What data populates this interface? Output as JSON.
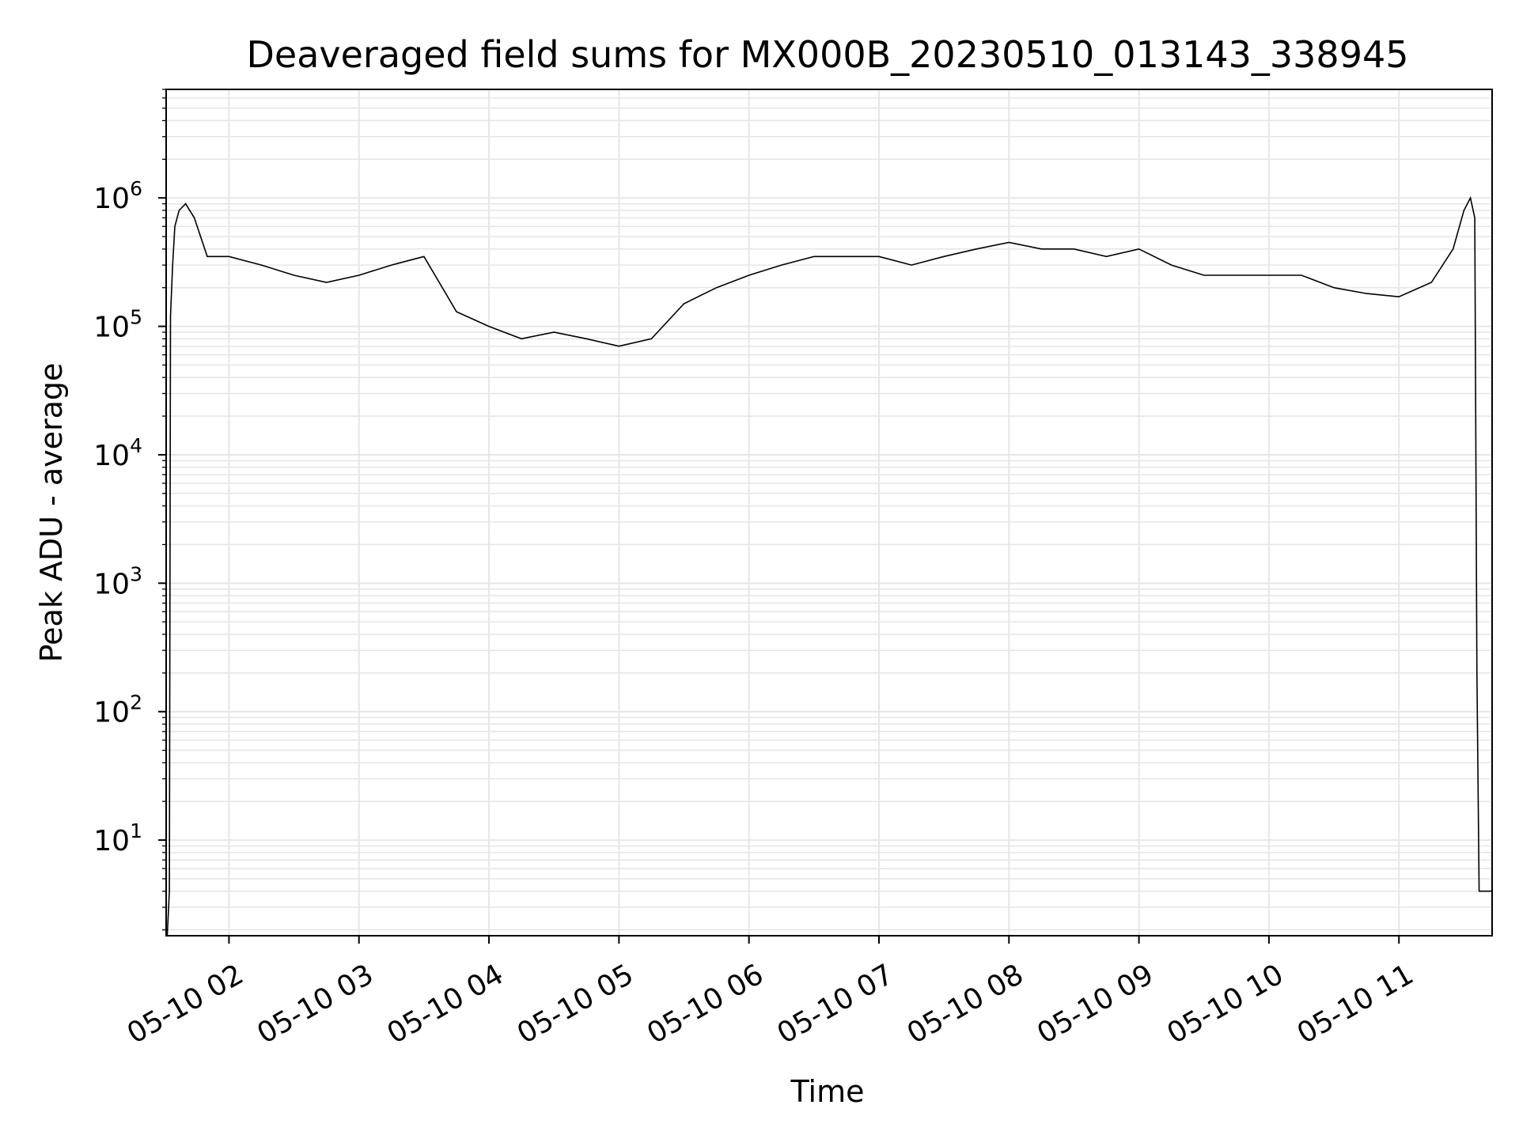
{
  "chart_data": {
    "type": "line",
    "title": "Deaveraged field sums for MX000B_20230510_013143_338945",
    "xlabel": "Time",
    "ylabel": "Peak ADU - average",
    "yscale": "log",
    "grid": true,
    "legend": "none",
    "line_color": "#000000",
    "grid_color": "#e6e6e6",
    "x_tick_labels": [
      "05-10 02",
      "05-10 03",
      "05-10 04",
      "05-10 05",
      "05-10 06",
      "05-10 07",
      "05-10 08",
      "05-10 09",
      "05-10 10",
      "05-10 11"
    ],
    "x_tick_times": [
      "2023-05-10T02:00",
      "2023-05-10T03:00",
      "2023-05-10T04:00",
      "2023-05-10T05:00",
      "2023-05-10T06:00",
      "2023-05-10T07:00",
      "2023-05-10T08:00",
      "2023-05-10T09:00",
      "2023-05-10T10:00",
      "2023-05-10T11:00"
    ],
    "xlim": [
      "2023-05-10T01:31",
      "2023-05-10T11:43"
    ],
    "y_tick_labels": [
      {
        "base": "10",
        "exp": "1",
        "value": 10
      },
      {
        "base": "10",
        "exp": "2",
        "value": 100
      },
      {
        "base": "10",
        "exp": "3",
        "value": 1000
      },
      {
        "base": "10",
        "exp": "4",
        "value": 10000
      },
      {
        "base": "10",
        "exp": "5",
        "value": 100000
      },
      {
        "base": "10",
        "exp": "6",
        "value": 1000000
      }
    ],
    "ylim": [
      1.8,
      7000000
    ],
    "series": [
      {
        "x": [
          "2023-05-10T01:31:30",
          "2023-05-10T01:32:30",
          "2023-05-10T01:33:00",
          "2023-05-10T01:34:00",
          "2023-05-10T01:35:00",
          "2023-05-10T01:37:00",
          "2023-05-10T01:40:00",
          "2023-05-10T01:44:00",
          "2023-05-10T01:50:00",
          "2023-05-10T02:00:00",
          "2023-05-10T02:15:00",
          "2023-05-10T02:30:00",
          "2023-05-10T02:45:00",
          "2023-05-10T03:00:00",
          "2023-05-10T03:15:00",
          "2023-05-10T03:30:00",
          "2023-05-10T03:45:00",
          "2023-05-10T04:00:00",
          "2023-05-10T04:15:00",
          "2023-05-10T04:30:00",
          "2023-05-10T04:45:00",
          "2023-05-10T05:00:00",
          "2023-05-10T05:15:00",
          "2023-05-10T05:30:00",
          "2023-05-10T05:45:00",
          "2023-05-10T06:00:00",
          "2023-05-10T06:15:00",
          "2023-05-10T06:30:00",
          "2023-05-10T06:45:00",
          "2023-05-10T07:00:00",
          "2023-05-10T07:15:00",
          "2023-05-10T07:30:00",
          "2023-05-10T07:45:00",
          "2023-05-10T08:00:00",
          "2023-05-10T08:15:00",
          "2023-05-10T08:30:00",
          "2023-05-10T08:45:00",
          "2023-05-10T09:00:00",
          "2023-05-10T09:15:00",
          "2023-05-10T09:30:00",
          "2023-05-10T09:45:00",
          "2023-05-10T10:00:00",
          "2023-05-10T10:15:00",
          "2023-05-10T10:30:00",
          "2023-05-10T10:45:00",
          "2023-05-10T11:00:00",
          "2023-05-10T11:15:00",
          "2023-05-10T11:25:00",
          "2023-05-10T11:30:00",
          "2023-05-10T11:33:00",
          "2023-05-10T11:35:00",
          "2023-05-10T11:36:00",
          "2023-05-10T11:37:00",
          "2023-05-10T11:43:00"
        ],
        "y": [
          1.8,
          4,
          120000,
          300000,
          600000,
          800000,
          900000,
          700000,
          350000,
          350000,
          300000,
          250000,
          220000,
          250000,
          300000,
          350000,
          130000,
          100000,
          80000,
          90000,
          80000,
          70000,
          80000,
          150000,
          200000,
          250000,
          300000,
          350000,
          350000,
          350000,
          300000,
          350000,
          400000,
          450000,
          400000,
          400000,
          350000,
          400000,
          300000,
          250000,
          250000,
          250000,
          250000,
          200000,
          180000,
          170000,
          220000,
          400000,
          800000,
          1000000,
          700000,
          200,
          4,
          4
        ]
      }
    ]
  }
}
